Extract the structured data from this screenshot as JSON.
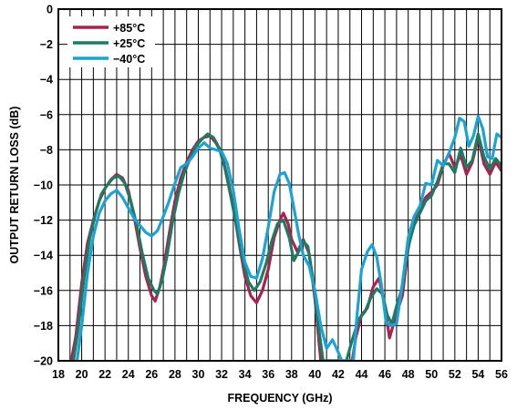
{
  "chart_data": {
    "type": "line",
    "xlabel": "FREQUENCY (GHz)",
    "ylabel": "OUTPUT RETURN LOSS (dB)",
    "xlim": [
      18,
      56
    ],
    "ylim": [
      -20,
      0
    ],
    "xticks": [
      "18",
      "20",
      "22",
      "24",
      "26",
      "28",
      "30",
      "32",
      "34",
      "36",
      "38",
      "40",
      "42",
      "44",
      "46",
      "48",
      "50",
      "52",
      "54",
      "56"
    ],
    "yticks": [
      "0",
      "−2",
      "−4",
      "−6",
      "−8",
      "−10",
      "−12",
      "−14",
      "−16",
      "−18",
      "−20"
    ],
    "x_minor_grid_step": 1,
    "grid": true,
    "legend_position": "top-left",
    "series": [
      {
        "name": "+85°C",
        "color": "#a8234d",
        "points": [
          [
            19.1,
            -20.0
          ],
          [
            19.5,
            -18.6
          ],
          [
            20.0,
            -15.6
          ],
          [
            20.5,
            -13.3
          ],
          [
            21.0,
            -12.0
          ],
          [
            21.5,
            -10.9
          ],
          [
            22.0,
            -10.2
          ],
          [
            22.5,
            -9.7
          ],
          [
            23.0,
            -9.4
          ],
          [
            23.5,
            -9.6
          ],
          [
            24.0,
            -10.3
          ],
          [
            24.5,
            -11.8
          ],
          [
            25.0,
            -13.6
          ],
          [
            25.5,
            -15.2
          ],
          [
            26.0,
            -16.3
          ],
          [
            26.3,
            -16.6
          ],
          [
            26.7,
            -15.8
          ],
          [
            27.0,
            -14.8
          ],
          [
            27.5,
            -12.8
          ],
          [
            28.0,
            -10.9
          ],
          [
            28.5,
            -9.6
          ],
          [
            29.0,
            -8.7
          ],
          [
            29.5,
            -8.0
          ],
          [
            30.0,
            -7.5
          ],
          [
            30.5,
            -7.3
          ],
          [
            31.0,
            -7.2
          ],
          [
            31.5,
            -7.6
          ],
          [
            32.0,
            -8.2
          ],
          [
            32.5,
            -9.6
          ],
          [
            33.0,
            -11.2
          ],
          [
            33.5,
            -13.3
          ],
          [
            34.0,
            -15.2
          ],
          [
            34.5,
            -16.3
          ],
          [
            35.0,
            -16.7
          ],
          [
            35.5,
            -16.0
          ],
          [
            36.0,
            -14.8
          ],
          [
            36.5,
            -13.0
          ],
          [
            37.0,
            -12.0
          ],
          [
            37.3,
            -11.6
          ],
          [
            37.7,
            -12.2
          ],
          [
            38.0,
            -13.1
          ],
          [
            38.5,
            -13.8
          ],
          [
            39.0,
            -13.1
          ],
          [
            39.5,
            -13.9
          ],
          [
            40.0,
            -16.5
          ],
          [
            40.5,
            -20.0
          ],
          [
            43.2,
            -20.0
          ],
          [
            43.5,
            -18.7
          ],
          [
            44.0,
            -17.4
          ],
          [
            44.5,
            -17.0
          ],
          [
            45.0,
            -15.8
          ],
          [
            45.5,
            -15.3
          ],
          [
            46.0,
            -16.9
          ],
          [
            46.4,
            -18.7
          ],
          [
            47.0,
            -17.3
          ],
          [
            47.5,
            -16.3
          ],
          [
            48.0,
            -13.6
          ],
          [
            48.5,
            -12.0
          ],
          [
            49.0,
            -11.4
          ],
          [
            49.5,
            -10.7
          ],
          [
            50.0,
            -10.4
          ],
          [
            50.5,
            -10.0
          ],
          [
            51.0,
            -8.9
          ],
          [
            51.5,
            -8.2
          ],
          [
            52.0,
            -9.0
          ],
          [
            52.5,
            -8.3
          ],
          [
            53.0,
            -9.4
          ],
          [
            53.5,
            -8.7
          ],
          [
            54.0,
            -7.3
          ],
          [
            54.5,
            -8.8
          ],
          [
            55.0,
            -9.4
          ],
          [
            55.5,
            -8.7
          ],
          [
            56.0,
            -9.2
          ]
        ]
      },
      {
        "name": "+25°C",
        "color": "#1f7a63",
        "points": [
          [
            19.3,
            -20.0
          ],
          [
            19.7,
            -18.2
          ],
          [
            20.2,
            -15.3
          ],
          [
            20.7,
            -13.0
          ],
          [
            21.2,
            -11.6
          ],
          [
            21.7,
            -10.5
          ],
          [
            22.2,
            -10.0
          ],
          [
            22.7,
            -9.6
          ],
          [
            23.2,
            -9.5
          ],
          [
            23.7,
            -9.9
          ],
          [
            24.2,
            -10.9
          ],
          [
            24.7,
            -12.2
          ],
          [
            25.2,
            -13.9
          ],
          [
            25.7,
            -15.3
          ],
          [
            26.2,
            -16.0
          ],
          [
            26.5,
            -16.2
          ],
          [
            26.9,
            -15.4
          ],
          [
            27.3,
            -14.1
          ],
          [
            27.8,
            -12.1
          ],
          [
            28.3,
            -10.5
          ],
          [
            28.8,
            -9.3
          ],
          [
            29.3,
            -8.5
          ],
          [
            29.8,
            -7.8
          ],
          [
            30.3,
            -7.4
          ],
          [
            30.8,
            -7.1
          ],
          [
            31.3,
            -7.3
          ],
          [
            31.8,
            -7.9
          ],
          [
            32.3,
            -9.1
          ],
          [
            32.8,
            -10.7
          ],
          [
            33.3,
            -12.4
          ],
          [
            33.8,
            -14.2
          ],
          [
            34.3,
            -15.5
          ],
          [
            34.8,
            -16.0
          ],
          [
            35.3,
            -15.5
          ],
          [
            35.8,
            -14.5
          ],
          [
            36.3,
            -13.2
          ],
          [
            36.8,
            -12.2
          ],
          [
            37.3,
            -12.0
          ],
          [
            37.8,
            -13.0
          ],
          [
            38.2,
            -14.3
          ],
          [
            38.6,
            -13.8
          ],
          [
            39.0,
            -13.2
          ],
          [
            39.4,
            -13.5
          ],
          [
            39.8,
            -15.2
          ],
          [
            40.3,
            -18.0
          ],
          [
            40.7,
            -20.0
          ],
          [
            42.7,
            -20.0
          ],
          [
            43.2,
            -18.8
          ],
          [
            43.8,
            -17.6
          ],
          [
            44.3,
            -17.2
          ],
          [
            44.8,
            -16.4
          ],
          [
            45.3,
            -15.9
          ],
          [
            45.8,
            -16.2
          ],
          [
            46.2,
            -17.4
          ],
          [
            46.6,
            -17.9
          ],
          [
            47.0,
            -16.9
          ],
          [
            47.5,
            -15.8
          ],
          [
            48.0,
            -13.5
          ],
          [
            48.5,
            -12.3
          ],
          [
            49.0,
            -11.6
          ],
          [
            49.5,
            -10.9
          ],
          [
            50.0,
            -10.6
          ],
          [
            50.5,
            -9.8
          ],
          [
            51.0,
            -8.8
          ],
          [
            51.5,
            -8.8
          ],
          [
            52.0,
            -9.3
          ],
          [
            52.5,
            -7.9
          ],
          [
            53.0,
            -9.0
          ],
          [
            53.5,
            -8.6
          ],
          [
            54.0,
            -7.1
          ],
          [
            54.5,
            -8.4
          ],
          [
            55.0,
            -9.1
          ],
          [
            55.5,
            -8.5
          ],
          [
            56.0,
            -8.9
          ]
        ]
      },
      {
        "name": "−40°C",
        "color": "#1aa3d4",
        "points": [
          [
            19.6,
            -20.0
          ],
          [
            20.0,
            -18.0
          ],
          [
            20.5,
            -15.0
          ],
          [
            21.0,
            -12.9
          ],
          [
            21.5,
            -11.6
          ],
          [
            22.0,
            -10.9
          ],
          [
            22.5,
            -10.5
          ],
          [
            23.0,
            -10.3
          ],
          [
            23.5,
            -10.7
          ],
          [
            24.0,
            -11.3
          ],
          [
            24.5,
            -11.9
          ],
          [
            25.0,
            -12.3
          ],
          [
            25.5,
            -12.7
          ],
          [
            26.0,
            -12.9
          ],
          [
            26.5,
            -12.6
          ],
          [
            27.0,
            -11.8
          ],
          [
            27.5,
            -10.9
          ],
          [
            28.0,
            -9.9
          ],
          [
            28.5,
            -9.0
          ],
          [
            29.0,
            -8.8
          ],
          [
            29.5,
            -8.4
          ],
          [
            30.0,
            -7.9
          ],
          [
            30.5,
            -7.6
          ],
          [
            31.0,
            -7.9
          ],
          [
            31.5,
            -8.0
          ],
          [
            32.0,
            -8.1
          ],
          [
            32.5,
            -8.8
          ],
          [
            33.0,
            -10.3
          ],
          [
            33.5,
            -12.5
          ],
          [
            34.0,
            -14.4
          ],
          [
            34.5,
            -15.2
          ],
          [
            35.0,
            -15.3
          ],
          [
            35.5,
            -14.2
          ],
          [
            36.0,
            -12.4
          ],
          [
            36.5,
            -10.4
          ],
          [
            37.0,
            -9.4
          ],
          [
            37.4,
            -9.3
          ],
          [
            37.8,
            -9.9
          ],
          [
            38.2,
            -11.3
          ],
          [
            38.6,
            -12.8
          ],
          [
            39.0,
            -14.0
          ],
          [
            39.5,
            -14.6
          ],
          [
            40.0,
            -16.0
          ],
          [
            40.5,
            -18.0
          ],
          [
            41.0,
            -19.3
          ],
          [
            41.5,
            -18.8
          ],
          [
            42.0,
            -19.5
          ],
          [
            42.3,
            -20.0
          ],
          [
            43.3,
            -20.0
          ],
          [
            43.6,
            -17.5
          ],
          [
            44.0,
            -14.8
          ],
          [
            44.5,
            -13.8
          ],
          [
            44.9,
            -13.4
          ],
          [
            45.3,
            -14.1
          ],
          [
            45.7,
            -15.7
          ],
          [
            46.1,
            -17.8
          ],
          [
            46.5,
            -18.0
          ],
          [
            47.0,
            -17.9
          ],
          [
            47.5,
            -15.6
          ],
          [
            48.0,
            -13.0
          ],
          [
            48.5,
            -11.8
          ],
          [
            49.0,
            -11.2
          ],
          [
            49.5,
            -9.9
          ],
          [
            50.0,
            -10.0
          ],
          [
            50.5,
            -8.6
          ],
          [
            51.0,
            -8.9
          ],
          [
            51.5,
            -8.2
          ],
          [
            52.0,
            -7.3
          ],
          [
            52.4,
            -6.2
          ],
          [
            52.8,
            -6.4
          ],
          [
            53.2,
            -7.8
          ],
          [
            53.6,
            -7.2
          ],
          [
            54.0,
            -6.1
          ],
          [
            54.4,
            -6.8
          ],
          [
            54.8,
            -8.4
          ],
          [
            55.2,
            -8.5
          ],
          [
            55.6,
            -7.1
          ],
          [
            56.0,
            -7.3
          ]
        ]
      }
    ]
  }
}
